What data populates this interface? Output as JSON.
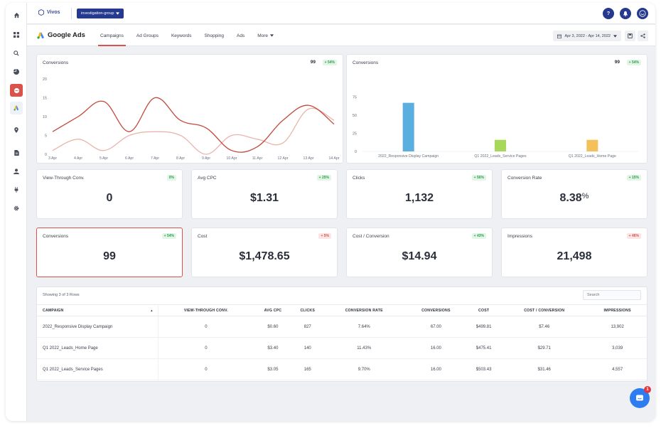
{
  "header": {
    "brand_name": "Vivos",
    "group_label": "investigation-group",
    "help_label": "?"
  },
  "nav": {
    "title": "Google Ads",
    "tabs": [
      {
        "label": "Campaigns"
      },
      {
        "label": "Ad Groups"
      },
      {
        "label": "Keywords"
      },
      {
        "label": "Shopping"
      },
      {
        "label": "Ads"
      },
      {
        "label": "More"
      }
    ],
    "date_range": "Apr 3, 2022 - Apr 14, 2022"
  },
  "line_card": {
    "title": "Conversions",
    "total": "99",
    "change": "+ 54%"
  },
  "bar_card": {
    "title": "Conversions",
    "total": "99",
    "change": "+ 54%"
  },
  "chart_data": [
    {
      "type": "line",
      "title": "Conversions",
      "x": [
        "3 Apr",
        "4 Apr",
        "5 Apr",
        "6 Apr",
        "7 Apr",
        "8 Apr",
        "9 Apr",
        "10 Apr",
        "11 Apr",
        "12 Apr",
        "13 Apr",
        "14 Apr"
      ],
      "ylim": [
        0,
        20
      ],
      "yticks": [
        0,
        5,
        10,
        15,
        20
      ],
      "series": [
        {
          "values": [
            6,
            10,
            14,
            6,
            15,
            9,
            7,
            1,
            2,
            9,
            13,
            8
          ],
          "color": "#c2493b"
        },
        {
          "values": [
            1,
            4,
            1,
            5,
            6,
            5,
            0,
            5,
            4,
            3,
            12,
            9
          ],
          "color": "#e9b5ad"
        }
      ],
      "grid": false
    },
    {
      "type": "bar",
      "title": "Conversions",
      "categories": [
        "2022_Responsive Display Campaign",
        "Q1 2022_Leads_Service Pages",
        "Q1 2022_Leads_Home Page"
      ],
      "values": [
        67,
        16,
        16
      ],
      "colors": [
        "#5aaee0",
        "#a8d85a",
        "#f3c05a"
      ],
      "ylim": [
        0,
        100
      ],
      "yticks": [
        0,
        25,
        50,
        75
      ]
    }
  ],
  "metrics": [
    {
      "title": "View-Through Conv.",
      "value": "0",
      "change": "0%",
      "dir": "up"
    },
    {
      "title": "Avg CPC",
      "value": "$1.31",
      "change": "+ 25%",
      "dir": "up"
    },
    {
      "title": "Clicks",
      "value": "1,132",
      "change": "+ 56%",
      "dir": "up"
    },
    {
      "title": "Conversion Rate",
      "value": "8.38",
      "unit": "%",
      "change": "+ 15%",
      "dir": "up"
    },
    {
      "title": "Conversions",
      "value": "99",
      "change": "+ 54%",
      "dir": "up"
    },
    {
      "title": "Cost",
      "value": "$1,478.65",
      "change": "+ 5%",
      "dir": "down"
    },
    {
      "title": "Cost / Conversion",
      "value": "$14.94",
      "change": "+ 43%",
      "dir": "up"
    },
    {
      "title": "Impressions",
      "value": "21,498",
      "change": "+ 46%",
      "dir": "down"
    }
  ],
  "table": {
    "caption": "Showing 3 of 3 Rows",
    "search_placeholder": "Search",
    "sort_icon": "▲",
    "columns": [
      "CAMPAIGN",
      "VIEW-THROUGH CONV.",
      "AVG CPC",
      "CLICKS",
      "CONVERSION RATE",
      "CONVERSIONS",
      "COST",
      "COST / CONVERSION",
      "IMPRESSIONS"
    ],
    "rows": [
      [
        "2022_Responsive Display Campaign",
        "0",
        "$0.60",
        "827",
        "7.64%",
        "67.00",
        "$499.81",
        "$7.46",
        "13,902"
      ],
      [
        "Q1 2022_Leads_Home Page",
        "0",
        "$3.40",
        "140",
        "11.43%",
        "16.00",
        "$475.41",
        "$29.71",
        "3,039"
      ],
      [
        "Q1 2022_Leads_Service Pages",
        "0",
        "$3.05",
        "165",
        "9.70%",
        "16.00",
        "$503.43",
        "$31.46",
        "4,557"
      ]
    ]
  },
  "chat": {
    "unread": "1"
  }
}
